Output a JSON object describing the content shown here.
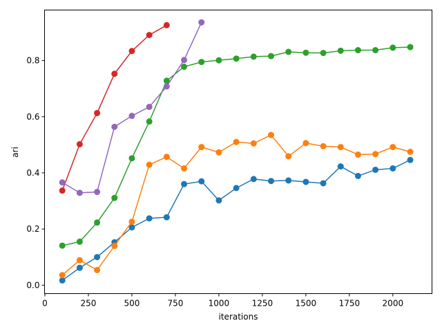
{
  "chart_data": {
    "type": "line",
    "title": "",
    "xlabel": "iterations",
    "ylabel": "ari",
    "xlim": [
      -2,
      2225
    ],
    "ylim": [
      -0.03,
      0.98
    ],
    "xticks": [
      0,
      250,
      500,
      750,
      1000,
      1250,
      1500,
      1750,
      2000
    ],
    "yticks": [
      0.0,
      0.2,
      0.4,
      0.6,
      0.8
    ],
    "ytick_labels": [
      "0.0",
      "0.2",
      "0.4",
      "0.6",
      "0.8"
    ],
    "grid": false,
    "legend": "none",
    "series": [
      {
        "color": "#1f77b4",
        "x": [
          100,
          200,
          300,
          400,
          500,
          600,
          700,
          800,
          900,
          1000,
          1100,
          1200,
          1300,
          1400,
          1500,
          1600,
          1700,
          1800,
          1900,
          2000,
          2100
        ],
        "y": [
          0.017,
          0.062,
          0.1,
          0.153,
          0.206,
          0.238,
          0.242,
          0.36,
          0.37,
          0.302,
          0.346,
          0.378,
          0.371,
          0.373,
          0.368,
          0.363,
          0.423,
          0.389,
          0.411,
          0.416,
          0.446
        ]
      },
      {
        "color": "#ff7f0e",
        "x": [
          100,
          200,
          300,
          400,
          500,
          600,
          700,
          800,
          900,
          1000,
          1100,
          1200,
          1300,
          1400,
          1500,
          1600,
          1700,
          1800,
          1900,
          2000,
          2100
        ],
        "y": [
          0.036,
          0.089,
          0.054,
          0.14,
          0.226,
          0.429,
          0.457,
          0.416,
          0.492,
          0.473,
          0.51,
          0.505,
          0.535,
          0.459,
          0.506,
          0.495,
          0.492,
          0.465,
          0.467,
          0.492,
          0.475
        ]
      },
      {
        "color": "#2ca02c",
        "x": [
          100,
          200,
          300,
          400,
          500,
          600,
          700,
          800,
          900,
          1000,
          1100,
          1200,
          1300,
          1400,
          1500,
          1600,
          1700,
          1800,
          1900,
          2000,
          2100
        ],
        "y": [
          0.141,
          0.155,
          0.223,
          0.311,
          0.452,
          0.583,
          0.728,
          0.778,
          0.795,
          0.801,
          0.807,
          0.814,
          0.816,
          0.831,
          0.828,
          0.827,
          0.835,
          0.837,
          0.837,
          0.846,
          0.848
        ]
      },
      {
        "color": "#d62728",
        "x": [
          100,
          200,
          300,
          400,
          500,
          600,
          700
        ],
        "y": [
          0.337,
          0.502,
          0.613,
          0.753,
          0.834,
          0.891,
          0.926
        ]
      },
      {
        "color": "#9467bd",
        "x": [
          100,
          200,
          300,
          400,
          500,
          600,
          700,
          800,
          900
        ],
        "y": [
          0.366,
          0.329,
          0.332,
          0.564,
          0.603,
          0.635,
          0.708,
          0.802,
          0.936
        ]
      }
    ]
  }
}
